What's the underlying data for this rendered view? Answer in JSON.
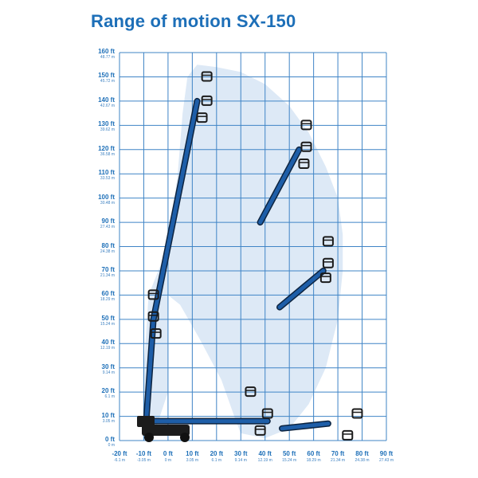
{
  "title": "Range of motion SX-150",
  "colors": {
    "title": "#1d6fb8",
    "grid": "#3f84c6",
    "envelope": "#dde9f6",
    "boom": "#1e5ea8",
    "boom_outline": "#0d2440",
    "platform": "#1b1b1b",
    "chassis": "#1c1c1c"
  },
  "y_axis": {
    "labels": [
      {
        "ft": "160 ft",
        "m": "48.77 m"
      },
      {
        "ft": "150 ft",
        "m": "45.72 m"
      },
      {
        "ft": "140 ft",
        "m": "42.67 m"
      },
      {
        "ft": "130 ft",
        "m": "39.62 m"
      },
      {
        "ft": "120 ft",
        "m": "36.58 m"
      },
      {
        "ft": "110 ft",
        "m": "33.53 m"
      },
      {
        "ft": "100 ft",
        "m": "30.48 m"
      },
      {
        "ft": "90 ft",
        "m": "27.43 m"
      },
      {
        "ft": "80 ft",
        "m": "24.38 m"
      },
      {
        "ft": "70 ft",
        "m": "21.34 m"
      },
      {
        "ft": "60 ft",
        "m": "18.29 m"
      },
      {
        "ft": "50 ft",
        "m": "15.24 m"
      },
      {
        "ft": "40 ft",
        "m": "12.19 m"
      },
      {
        "ft": "30 ft",
        "m": "9.14 m"
      },
      {
        "ft": "20 ft",
        "m": "6.1 m"
      },
      {
        "ft": "10 ft",
        "m": "3.05 m"
      },
      {
        "ft": "0 ft",
        "m": "0 m"
      }
    ]
  },
  "x_axis": {
    "labels": [
      {
        "ft": "-20 ft",
        "m": "-6.1 m"
      },
      {
        "ft": "-10 ft",
        "m": "-3.05 m"
      },
      {
        "ft": "0 ft",
        "m": "0 m"
      },
      {
        "ft": "10 ft",
        "m": "3.05 m"
      },
      {
        "ft": "20 ft",
        "m": "6.1 m"
      },
      {
        "ft": "30 ft",
        "m": "9.14 m"
      },
      {
        "ft": "40 ft",
        "m": "12.19 m"
      },
      {
        "ft": "50 ft",
        "m": "15.24 m"
      },
      {
        "ft": "60 ft",
        "m": "18.29 m"
      },
      {
        "ft": "70 ft",
        "m": "21.34 m"
      },
      {
        "ft": "80 ft",
        "m": "24.38 m"
      },
      {
        "ft": "90 ft",
        "m": "27.43 m"
      }
    ]
  },
  "chart_data": {
    "type": "diagram",
    "title": "Range of motion SX-150",
    "x_range_ft": [
      -20,
      90
    ],
    "y_range_ft": [
      0,
      160
    ],
    "grid": true,
    "envelope_ft": [
      [
        -10,
        2
      ],
      [
        -10,
        30
      ],
      [
        -8,
        60
      ],
      [
        0,
        80
      ],
      [
        4,
        110
      ],
      [
        6,
        135
      ],
      [
        8,
        150
      ],
      [
        12,
        155
      ],
      [
        20,
        154
      ],
      [
        30,
        152
      ],
      [
        40,
        147
      ],
      [
        50,
        138
      ],
      [
        58,
        127
      ],
      [
        65,
        113
      ],
      [
        70,
        100
      ],
      [
        72,
        85
      ],
      [
        72,
        70
      ],
      [
        70,
        50
      ],
      [
        65,
        30
      ],
      [
        58,
        15
      ],
      [
        50,
        5
      ],
      [
        40,
        1
      ],
      [
        30,
        3
      ],
      [
        28,
        8
      ],
      [
        22,
        25
      ],
      [
        13,
        42
      ],
      [
        5,
        56
      ],
      [
        0,
        60
      ],
      [
        0,
        20
      ],
      [
        -6,
        2
      ]
    ],
    "booms_ft": [
      {
        "pivot": [
          -9,
          8
        ],
        "elbow": [
          -6,
          50
        ],
        "tip": [
          12,
          140
        ]
      },
      {
        "pivot": [
          38,
          90
        ],
        "tip": [
          54,
          120
        ]
      },
      {
        "pivot": [
          46,
          55
        ],
        "tip": [
          64,
          70
        ]
      },
      {
        "pivot": [
          -9,
          8
        ],
        "elbow": [
          28,
          8
        ],
        "tip": [
          41,
          8
        ]
      },
      {
        "pivot": [
          47,
          5
        ],
        "tip": [
          66,
          7
        ]
      }
    ],
    "platforms_ft": [
      {
        "at": [
          16,
          150
        ],
        "dir": "up"
      },
      {
        "at": [
          16,
          140
        ],
        "dir": "right"
      },
      {
        "at": [
          14,
          133
        ],
        "dir": "down"
      },
      {
        "at": [
          -6,
          60
        ],
        "dir": "up"
      },
      {
        "at": [
          -6,
          51
        ],
        "dir": "right"
      },
      {
        "at": [
          -5,
          44
        ],
        "dir": "down"
      },
      {
        "at": [
          57,
          130
        ],
        "dir": "up"
      },
      {
        "at": [
          57,
          121
        ],
        "dir": "right"
      },
      {
        "at": [
          56,
          114
        ],
        "dir": "down"
      },
      {
        "at": [
          66,
          82
        ],
        "dir": "up"
      },
      {
        "at": [
          66,
          73
        ],
        "dir": "right"
      },
      {
        "at": [
          65,
          67
        ],
        "dir": "down"
      },
      {
        "at": [
          34,
          20
        ],
        "dir": "up"
      },
      {
        "at": [
          41,
          11
        ],
        "dir": "right"
      },
      {
        "at": [
          38,
          4
        ],
        "dir": "down"
      },
      {
        "at": [
          78,
          11
        ],
        "dir": "right"
      },
      {
        "at": [
          74,
          2
        ],
        "dir": "down"
      }
    ]
  }
}
